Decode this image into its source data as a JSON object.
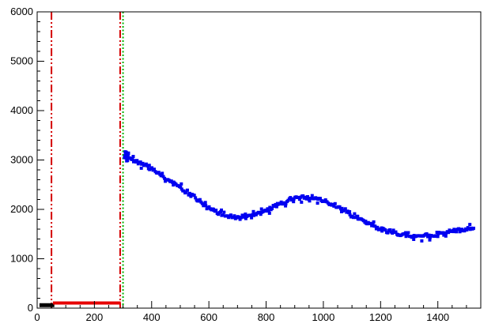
{
  "chart_data": {
    "type": "scatter",
    "title": "",
    "xlabel": "",
    "ylabel": "",
    "xlim": [
      0,
      1550
    ],
    "ylim": [
      0,
      6000
    ],
    "x_ticks": [
      0,
      200,
      400,
      600,
      800,
      1000,
      1200,
      1400
    ],
    "y_ticks": [
      0,
      1000,
      2000,
      3000,
      4000,
      5000,
      6000
    ],
    "x_minor_step": 50,
    "y_minor_step": 200,
    "grid": false,
    "legend": "none",
    "axis_color": "#000000",
    "background": "#ffffff",
    "series": [
      {
        "name": "signal-band",
        "marker": "square",
        "marker_size": 4,
        "color": "#0000f0",
        "noise": 60,
        "step": 4,
        "trend": [
          [
            305,
            3080
          ],
          [
            330,
            3000
          ],
          [
            360,
            2930
          ],
          [
            390,
            2850
          ],
          [
            420,
            2760
          ],
          [
            450,
            2650
          ],
          [
            480,
            2520
          ],
          [
            510,
            2400
          ],
          [
            540,
            2280
          ],
          [
            570,
            2150
          ],
          [
            600,
            2030
          ],
          [
            630,
            1940
          ],
          [
            660,
            1880
          ],
          [
            690,
            1850
          ],
          [
            720,
            1845
          ],
          [
            750,
            1870
          ],
          [
            780,
            1930
          ],
          [
            810,
            2010
          ],
          [
            840,
            2090
          ],
          [
            870,
            2170
          ],
          [
            900,
            2230
          ],
          [
            930,
            2255
          ],
          [
            960,
            2240
          ],
          [
            990,
            2190
          ],
          [
            1020,
            2120
          ],
          [
            1050,
            2040
          ],
          [
            1080,
            1950
          ],
          [
            1110,
            1850
          ],
          [
            1140,
            1760
          ],
          [
            1170,
            1680
          ],
          [
            1200,
            1610
          ],
          [
            1230,
            1555
          ],
          [
            1260,
            1510
          ],
          [
            1290,
            1475
          ],
          [
            1320,
            1455
          ],
          [
            1350,
            1460
          ],
          [
            1380,
            1480
          ],
          [
            1410,
            1510
          ],
          [
            1440,
            1540
          ],
          [
            1470,
            1570
          ],
          [
            1500,
            1600
          ],
          [
            1525,
            1625
          ]
        ]
      }
    ],
    "segments": [
      {
        "name": "pedestal-black",
        "x1": 8,
        "y1": 60,
        "x2": 60,
        "y2": 60,
        "color": "#000000",
        "width": 5
      },
      {
        "name": "pedestal-red",
        "x1": 55,
        "y1": 105,
        "x2": 292,
        "y2": 105,
        "color": "#e60000",
        "width": 4
      }
    ],
    "vlines": [
      {
        "name": "cut-low-line",
        "x": 50,
        "color": "#d40000",
        "style": "dashdot",
        "width": 2
      },
      {
        "name": "cut-high-line",
        "x": 290,
        "color": "#d40000",
        "style": "dashdot",
        "width": 2
      },
      {
        "name": "threshold-line",
        "x": 300,
        "color": "#00b400",
        "style": "dotted",
        "width": 2
      }
    ]
  }
}
